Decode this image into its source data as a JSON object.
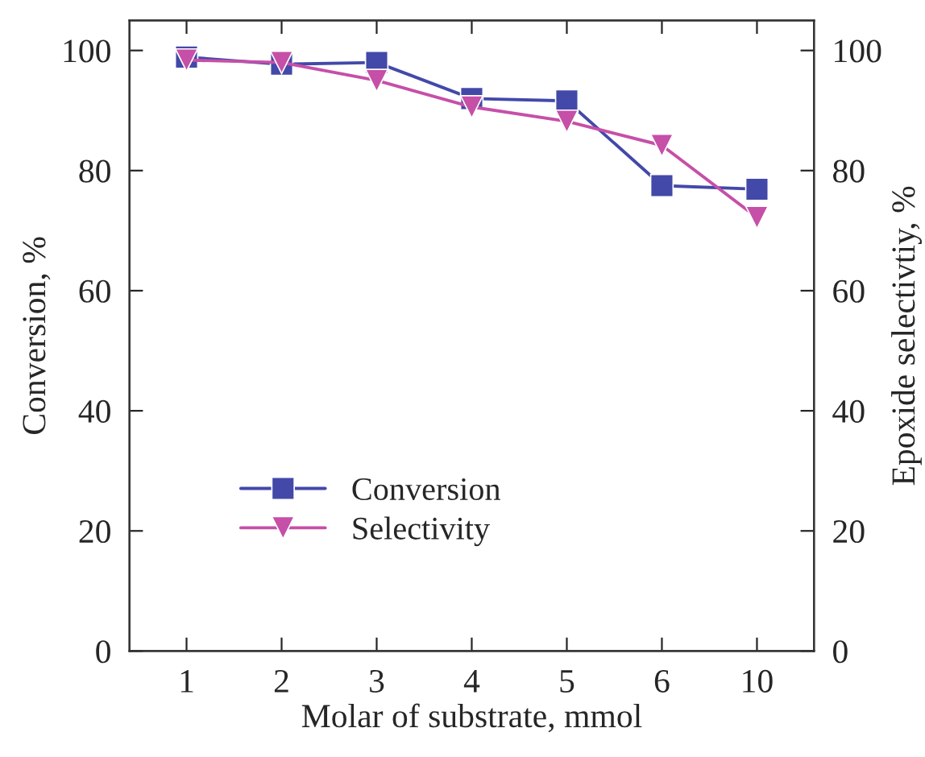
{
  "chart_data": {
    "type": "line",
    "xlabel": "Molar of substrate, mmol",
    "ylabel": "Conversion, %",
    "y2label": "Epoxide selectivtiy, %",
    "categories": [
      "1",
      "2",
      "3",
      "4",
      "5",
      "6",
      "10"
    ],
    "series": [
      {
        "name": "Conversion",
        "color": "#4349a8",
        "marker": "square",
        "values": [
          98.9,
          97.7,
          98.0,
          92.0,
          91.6,
          77.5,
          76.9
        ]
      },
      {
        "name": "Selectivity",
        "color": "#c64fa8",
        "marker": "triangle",
        "axis": "y2",
        "values": [
          98.4,
          98.0,
          95.0,
          90.6,
          88.2,
          84.2,
          72.2
        ]
      }
    ],
    "ylim": [
      0,
      105
    ],
    "yticks": [
      0,
      20,
      40,
      60,
      80,
      100
    ],
    "y2lim": [
      0,
      105
    ],
    "y2ticks": [
      0,
      20,
      40,
      60,
      80,
      100
    ],
    "grid": false,
    "legend": "bottom left",
    "line_style": "solid"
  }
}
